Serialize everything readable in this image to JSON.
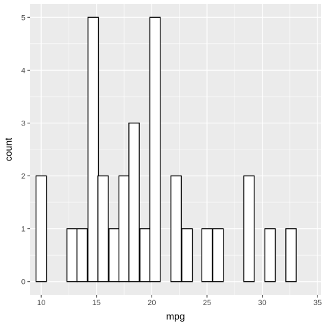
{
  "chart_data": {
    "type": "bar",
    "title": "",
    "xlabel": "mpg",
    "ylabel": "count",
    "xlim": [
      9.0,
      35.3
    ],
    "ylim": [
      -0.25,
      5.25
    ],
    "xticks": [
      10,
      15,
      20,
      25,
      30,
      35
    ],
    "yticks": [
      0,
      1,
      2,
      3,
      4,
      5
    ],
    "grid": true,
    "legend": "none",
    "bar_fill": "#ffffff",
    "bar_outline": "#000000",
    "panel_background": "#ebebeb",
    "grid_color": "#ffffff",
    "bins": [
      {
        "center": 10.0,
        "count": 2
      },
      {
        "center": 10.9,
        "count": 0
      },
      {
        "center": 11.8,
        "count": 0
      },
      {
        "center": 12.8,
        "count": 1
      },
      {
        "center": 13.7,
        "count": 1
      },
      {
        "center": 14.7,
        "count": 5
      },
      {
        "center": 15.6,
        "count": 2
      },
      {
        "center": 16.6,
        "count": 1
      },
      {
        "center": 17.5,
        "count": 2
      },
      {
        "center": 18.4,
        "count": 3
      },
      {
        "center": 19.4,
        "count": 1
      },
      {
        "center": 20.3,
        "count": 5
      },
      {
        "center": 21.3,
        "count": 0
      },
      {
        "center": 22.2,
        "count": 2
      },
      {
        "center": 23.2,
        "count": 1
      },
      {
        "center": 24.1,
        "count": 0
      },
      {
        "center": 25.0,
        "count": 1
      },
      {
        "center": 26.0,
        "count": 1
      },
      {
        "center": 26.9,
        "count": 0
      },
      {
        "center": 27.9,
        "count": 0
      },
      {
        "center": 28.8,
        "count": 2
      },
      {
        "center": 29.7,
        "count": 0
      },
      {
        "center": 30.7,
        "count": 1
      },
      {
        "center": 31.6,
        "count": 0
      },
      {
        "center": 32.6,
        "count": 1
      }
    ]
  }
}
